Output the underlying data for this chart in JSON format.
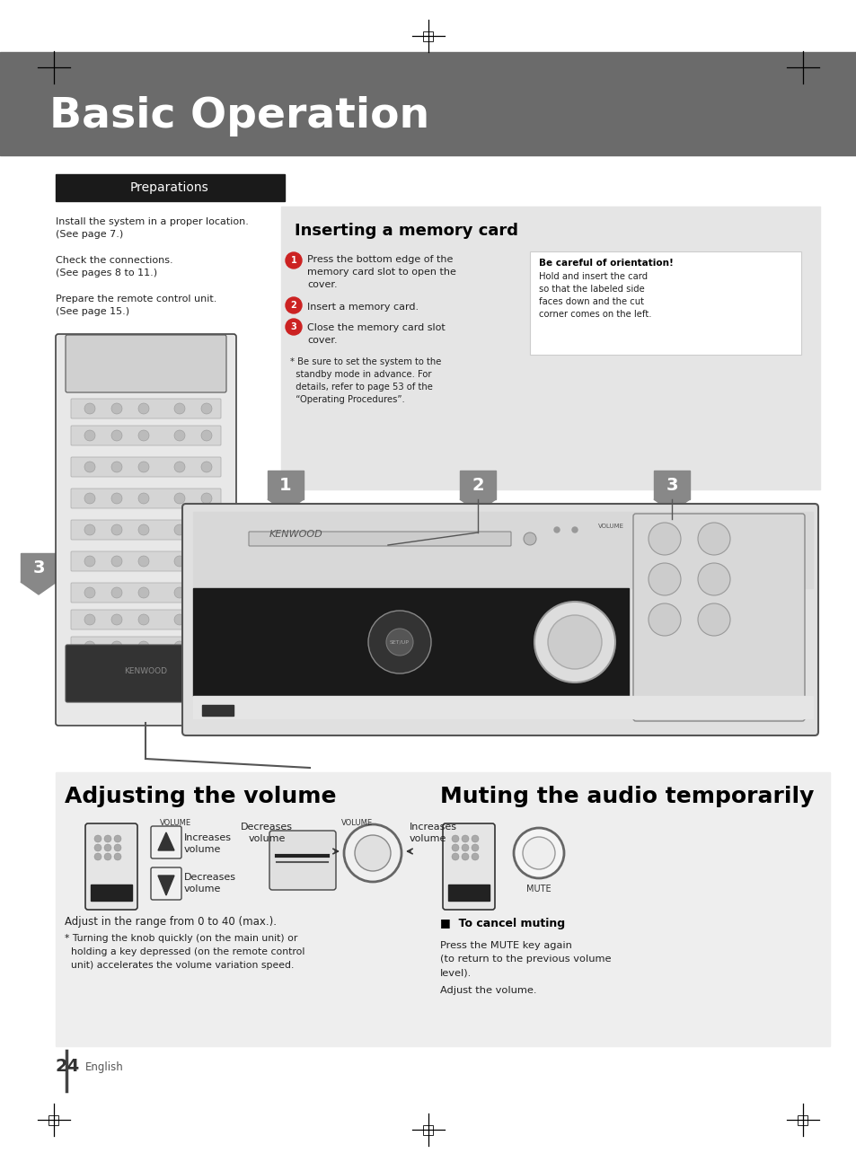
{
  "bg_color": "#ffffff",
  "header_color": "#6b6b6b",
  "header_text": "Basic Operation",
  "header_text_color": "#ffffff",
  "header_font_size": 34,
  "prep_box_color": "#1a1a1a",
  "prep_text": "Preparations",
  "prep_text_color": "#ffffff",
  "prep_font_size": 10,
  "body_font_size": 8.0,
  "body_text_color": "#222222",
  "insert_title": "Inserting a memory card",
  "insert_title_size": 13,
  "insert_box_color": "#e5e5e5",
  "be_careful_title": "Be careful of orientation!",
  "be_careful_body": "Hold and insert the card\nso that the labeled side\nfaces down and the cut\ncorner comes on the left.",
  "adj_vol_title": "Adjusting the volume",
  "adj_vol_title_size": 18,
  "mute_title": "Muting the audio temporarily",
  "mute_title_size": 18,
  "cancel_mute_title": "■  To cancel muting",
  "adjust_range": "Adjust in the range from 0 to 40 (max.).",
  "turning_note": "* Turning the knob quickly (on the main unit) or\n  holding a key depressed (on the remote control\n  unit) accelerates the volume variation speed.",
  "page_num": "24",
  "page_lang": "English",
  "num_circle_color": "#cc2222",
  "num_circle_text_color": "#ffffff",
  "step1": "Press the bottom edge of the\nmemory card slot to open the\ncover.",
  "step2": "Insert a memory card.",
  "step3": "Close the memory card slot\ncover.",
  "note_star": "* Be sure to set the system to the\n  standby mode in advance. For\n  details, refer to page 53 of the\n  “Operating Procedures”.",
  "gray_marker_color": "#888888",
  "gray_marker_text_color": "#ffffff",
  "bottom_bg_color": "#eeeeee",
  "increases_vol": "Increases\nvolume",
  "decreases_vol": "Decreases\nvolume",
  "cancel_mute_body1": "Press the MUTE key again",
  "cancel_mute_body2": "(to return to the previous volume",
  "cancel_mute_body3": "level).",
  "cancel_mute_body4": "Adjust the volume."
}
